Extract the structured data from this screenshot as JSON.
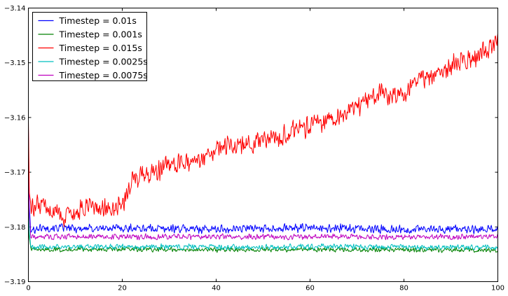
{
  "chart_data": {
    "type": "line",
    "title": "",
    "xlabel": "",
    "ylabel": "",
    "xlim": [
      0,
      100
    ],
    "ylim": [
      -3.19,
      -3.14
    ],
    "xticks": [
      0,
      20,
      40,
      60,
      80,
      100
    ],
    "yticks": [
      -3.19,
      -3.18,
      -3.17,
      -3.16,
      -3.15,
      -3.14
    ],
    "xtick_labels": [
      "0",
      "20",
      "40",
      "60",
      "80",
      "100"
    ],
    "ytick_labels": [
      "−3.19",
      "−3.18",
      "−3.17",
      "−3.16",
      "−3.15",
      "−3.14"
    ],
    "grid": false,
    "legend_position": "top-left",
    "series": [
      {
        "name": "Timestep = 0.01s",
        "color": "#0000ff",
        "x": [
          0,
          0.2,
          0.5,
          1,
          2,
          5,
          10,
          20,
          30,
          40,
          50,
          60,
          70,
          80,
          90,
          100
        ],
        "y": [
          -3.162,
          -3.176,
          -3.181,
          -3.1805,
          -3.1802,
          -3.1801,
          -3.1803,
          -3.1802,
          -3.1803,
          -3.1804,
          -3.1802,
          -3.1802,
          -3.1803,
          -3.1805,
          -3.1804,
          -3.1805
        ],
        "noise": 0.0009
      },
      {
        "name": "Timestep = 0.001s",
        "color": "#008000",
        "x": [
          0,
          0.2,
          0.5,
          1,
          5,
          20,
          40,
          60,
          80,
          100
        ],
        "y": [
          -3.178,
          -3.182,
          -3.1838,
          -3.1842,
          -3.1841,
          -3.1841,
          -3.1842,
          -3.1841,
          -3.1842,
          -3.1842
        ],
        "noise": 0.0005
      },
      {
        "name": "Timestep = 0.015s",
        "color": "#ff0000",
        "x": [
          0,
          0.2,
          0.5,
          1,
          3,
          5,
          8,
          10,
          12,
          15,
          18,
          20,
          22,
          25,
          28,
          30,
          33,
          36,
          40,
          45,
          50,
          53,
          56,
          60,
          63,
          66,
          70,
          73,
          75,
          78,
          80,
          82,
          85,
          88,
          90,
          93,
          96,
          98,
          100
        ],
        "y": [
          -3.16,
          -3.174,
          -3.176,
          -3.176,
          -3.1765,
          -3.177,
          -3.1785,
          -3.178,
          -3.1765,
          -3.1765,
          -3.177,
          -3.176,
          -3.171,
          -3.1705,
          -3.1695,
          -3.169,
          -3.1685,
          -3.1675,
          -3.1655,
          -3.165,
          -3.1645,
          -3.164,
          -3.1625,
          -3.1615,
          -3.1605,
          -3.16,
          -3.158,
          -3.1565,
          -3.1555,
          -3.156,
          -3.156,
          -3.1535,
          -3.1525,
          -3.152,
          -3.1505,
          -3.1495,
          -3.149,
          -3.1475,
          -3.1455
        ],
        "noise": 0.0022
      },
      {
        "name": "Timestep = 0.0025s",
        "color": "#00bfbf",
        "x": [
          0,
          0.2,
          0.5,
          1,
          5,
          20,
          40,
          60,
          80,
          100
        ],
        "y": [
          -3.176,
          -3.181,
          -3.1835,
          -3.1838,
          -3.1836,
          -3.1836,
          -3.1837,
          -3.1836,
          -3.1837,
          -3.1837
        ],
        "noise": 0.0006
      },
      {
        "name": "Timestep = 0.0075s",
        "color": "#bf00bf",
        "x": [
          0,
          0.2,
          0.5,
          1,
          5,
          20,
          40,
          60,
          80,
          100
        ],
        "y": [
          -3.168,
          -3.178,
          -3.1818,
          -3.1819,
          -3.1818,
          -3.1818,
          -3.1818,
          -3.1818,
          -3.1818,
          -3.1818
        ],
        "noise": 0.0006
      }
    ]
  }
}
